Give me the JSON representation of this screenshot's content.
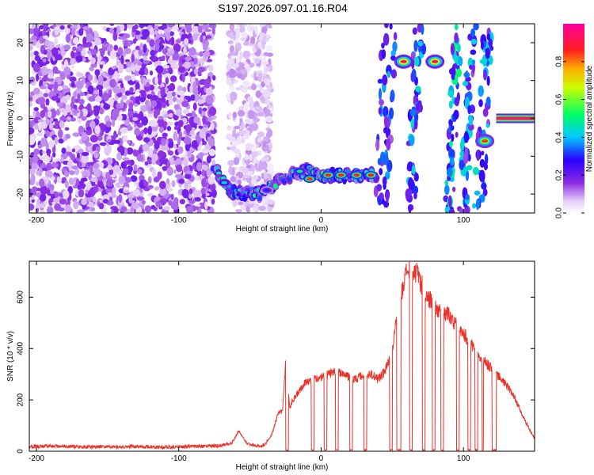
{
  "title": "S197.2026.097.01.16.R04",
  "colors": {
    "snr_line": "#e8332b",
    "frame": "#000000",
    "background": "#ffffff"
  },
  "chart_data": [
    {
      "type": "heatmap",
      "name": "spectrogram",
      "xlabel": "Height of straight line (km)",
      "ylabel": "Frequency (Hz)",
      "xlim": [
        -205,
        150
      ],
      "ylim": [
        -25,
        25
      ],
      "xticks": [
        -200,
        -100,
        0,
        100
      ],
      "yticks": [
        -20,
        -10,
        0,
        10,
        20
      ],
      "colorbar": {
        "label": "Normalized spectral amplitude",
        "range": [
          0,
          1
        ],
        "ticks": [
          0.0,
          0.2,
          0.4,
          0.6,
          0.8
        ],
        "tick_labels": [
          "0.0",
          "0.2",
          "0.4",
          "0.6",
          "0.8"
        ],
        "colormap": "rainbow (white → purple → blue → cyan → green → yellow → red → magenta)"
      },
      "features": [
        {
          "type": "noise",
          "x_range": [
            -205,
            -75
          ],
          "y_range": [
            -25,
            25
          ],
          "amplitude": 0.15
        },
        {
          "type": "noise",
          "x_range": [
            -65,
            -35
          ],
          "y_range": [
            -25,
            25
          ],
          "amplitude": 0.08
        },
        {
          "type": "track",
          "points": [
            [
              -75,
              -13
            ],
            [
              -68,
              -17
            ],
            [
              -65,
              -19
            ],
            [
              -55,
              -20
            ],
            [
              -42,
              -20
            ],
            [
              -35,
              -18
            ],
            [
              -28,
              -16
            ],
            [
              -20,
              -15
            ],
            [
              -10,
              -14
            ],
            [
              0,
              -15
            ],
            [
              38,
              -15
            ]
          ],
          "amplitude": 0.75,
          "peaks": [
            [
              -68,
              -17,
              0.45
            ],
            [
              -38,
              -19,
              0.3
            ],
            [
              -15,
              -14,
              0.5
            ],
            [
              -8,
              -16,
              0.85
            ],
            [
              5,
              -15,
              0.9
            ],
            [
              14,
              -15,
              0.9
            ],
            [
              25,
              -15,
              0.9
            ],
            [
              35,
              -15,
              0.9
            ]
          ]
        },
        {
          "type": "streak",
          "x_range": [
            40,
            50
          ],
          "amplitude": 0.3
        },
        {
          "type": "streak",
          "x_range": [
            62,
            70
          ],
          "amplitude": 0.35
        },
        {
          "type": "streak",
          "x_range": [
            90,
            96
          ],
          "amplitude": 0.4
        },
        {
          "type": "streak",
          "x_range": [
            100,
            106
          ],
          "amplitude": 0.35
        },
        {
          "type": "streak",
          "x_range": [
            110,
            118
          ],
          "amplitude": 0.35
        },
        {
          "type": "peak",
          "x": 58,
          "y": 15,
          "amplitude": 0.95
        },
        {
          "type": "peak",
          "x": 80,
          "y": 15,
          "amplitude": 0.95
        },
        {
          "type": "peak",
          "x": 115,
          "y": -6,
          "amplitude": 0.85
        },
        {
          "type": "line",
          "x_range": [
            123,
            150
          ],
          "y": 0,
          "amplitude": 0.95
        }
      ]
    },
    {
      "type": "line",
      "name": "snr",
      "xlabel": "Height of straight line (km)",
      "ylabel": "SNR (10 * v/v)",
      "xlim": [
        -205,
        150
      ],
      "ylim": [
        0,
        740
      ],
      "xticks": [
        -200,
        -100,
        0,
        100
      ],
      "yticks": [
        0,
        200,
        400,
        600
      ],
      "series": [
        {
          "x": [
            -205,
            -190,
            -170,
            -150,
            -130,
            -110,
            -90,
            -80,
            -70,
            -62,
            -58,
            -52,
            -45,
            -40,
            -35,
            -30,
            -27,
            -25,
            -22,
            -20,
            -18,
            -15,
            -12,
            -10,
            -5,
            0,
            5,
            10,
            15,
            20,
            25,
            30,
            35,
            40,
            45,
            48,
            50,
            52,
            55,
            58,
            60,
            62,
            65,
            68,
            70,
            72,
            75,
            78,
            80,
            85,
            90,
            95,
            100,
            105,
            110,
            115,
            120,
            125,
            130,
            135,
            140,
            145,
            150
          ],
          "y": [
            18,
            20,
            18,
            17,
            18,
            16,
            18,
            20,
            22,
            35,
            80,
            30,
            20,
            25,
            60,
            150,
            160,
            340,
            165,
            200,
            210,
            240,
            260,
            270,
            280,
            285,
            300,
            310,
            300,
            290,
            280,
            300,
            300,
            280,
            310,
            360,
            390,
            480,
            570,
            650,
            700,
            720,
            680,
            700,
            650,
            640,
            600,
            580,
            560,
            540,
            530,
            490,
            460,
            420,
            380,
            350,
            320,
            290,
            260,
            220,
            160,
            100,
            50
          ]
        }
      ],
      "dropouts": [
        [
          -25,
          -23
        ],
        [
          -7,
          -5
        ],
        [
          2,
          4
        ],
        [
          10,
          12
        ],
        [
          20,
          22
        ],
        [
          30,
          32
        ],
        [
          48,
          50
        ],
        [
          53,
          56
        ],
        [
          62,
          64
        ],
        [
          71,
          73
        ],
        [
          78,
          80
        ],
        [
          84,
          86
        ],
        [
          95,
          97
        ],
        [
          103,
          105
        ],
        [
          108,
          110
        ],
        [
          113,
          114
        ],
        [
          120,
          123
        ]
      ]
    }
  ]
}
